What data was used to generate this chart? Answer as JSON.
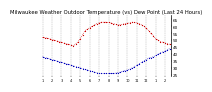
{
  "title": "Milwaukee Weather Outdoor Temperature (vs) Dew Point (Last 24 Hours)",
  "title_fontsize": 3.8,
  "x_labels": [
    "1",
    "",
    "",
    "2",
    "",
    "",
    "3",
    "",
    "",
    "4",
    "",
    "",
    "5",
    "",
    "",
    "6",
    "",
    "",
    "7",
    "",
    "",
    "8",
    "",
    "",
    "9",
    "",
    "",
    "10",
    "",
    "",
    "11",
    "",
    "",
    "12",
    "",
    "",
    "1",
    "",
    "",
    "2",
    "",
    "",
    "3",
    "",
    "",
    "4",
    "",
    "",
    "5",
    "",
    "",
    "6",
    "",
    "",
    "7",
    "",
    "",
    "8",
    "",
    "",
    "9",
    "",
    "",
    "10",
    "",
    "",
    "11",
    "",
    "",
    "12",
    "",
    "",
    "1"
  ],
  "temp_values": [
    52,
    51.8,
    51.5,
    51,
    50.5,
    50,
    49.5,
    49,
    48.5,
    48,
    47.5,
    47,
    46.5,
    46,
    47,
    49,
    51,
    54,
    57,
    58,
    59,
    60,
    61,
    62,
    62.5,
    63,
    63,
    63,
    62.8,
    62.5,
    62,
    61.5,
    61,
    61.2,
    61.5,
    62,
    62.2,
    62.5,
    63,
    62.8,
    62.5,
    62,
    61,
    60,
    58.5,
    57,
    55,
    53,
    51,
    50,
    49,
    48.5,
    48,
    47.5,
    47
  ],
  "dew_values": [
    38,
    37.5,
    37,
    36.5,
    36,
    35.5,
    35,
    34.5,
    34,
    33.5,
    33,
    32.5,
    32,
    31.5,
    31,
    30.5,
    30,
    29.5,
    29,
    28.5,
    28,
    27.5,
    27,
    26.5,
    26,
    26,
    26,
    26,
    26,
    26,
    26,
    26.2,
    26.5,
    27,
    27.5,
    28,
    28.5,
    29,
    30,
    31,
    32,
    33,
    34,
    35,
    36,
    37,
    37.5,
    38,
    39,
    40,
    41,
    41.5,
    42,
    43,
    44
  ],
  "temp_color": "#cc0000",
  "dew_color": "#0000bb",
  "ylim": [
    24,
    68
  ],
  "yticks": [
    25,
    30,
    35,
    40,
    45,
    50,
    55,
    60,
    65
  ],
  "background_color": "#ffffff",
  "grid_color": "#aaaaaa",
  "ylabel_fontsize": 3.0,
  "xlabel_fontsize": 2.5,
  "n_points": 55
}
